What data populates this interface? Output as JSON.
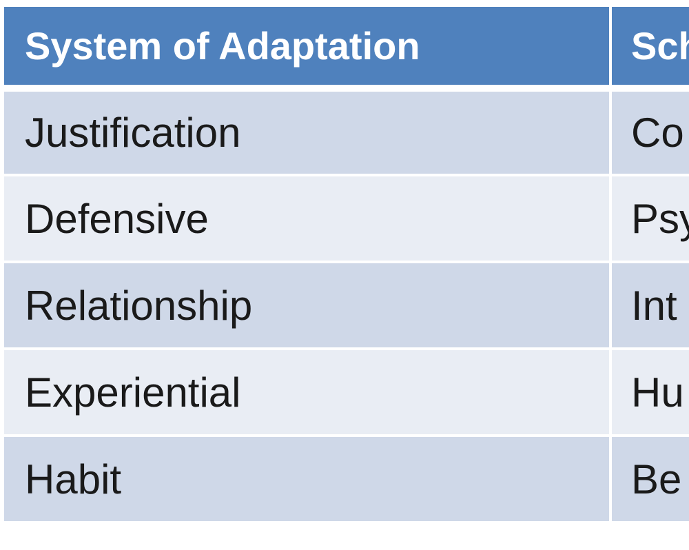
{
  "table": {
    "headers": [
      "System of Adaptation",
      "Sch"
    ],
    "rows": [
      [
        "Justification",
        "Co"
      ],
      [
        "Defensive",
        "Psy"
      ],
      [
        "Relationship",
        "Int"
      ],
      [
        "Experiential",
        "Hu"
      ],
      [
        "Habit",
        "Be"
      ]
    ]
  },
  "colors": {
    "header_bg": "#4f81bd",
    "row_band_dark": "#cfd8e8",
    "row_band_light": "#e9edf4"
  }
}
